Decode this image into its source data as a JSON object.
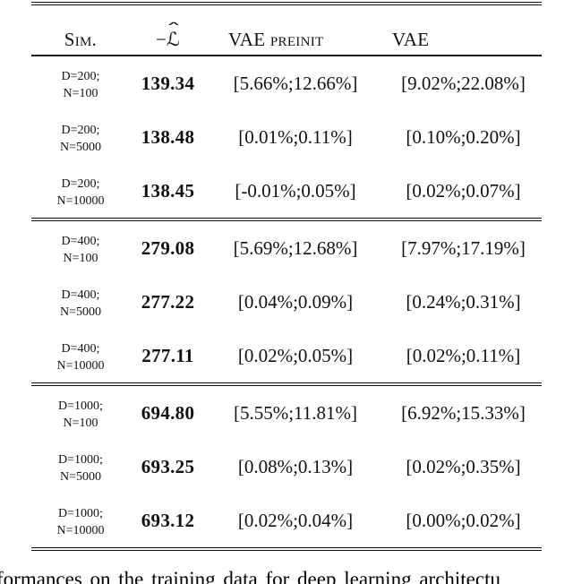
{
  "table": {
    "header": {
      "sim": "Sim.",
      "nll": {
        "minus": "−",
        "letter": "ℒ",
        "hat": "ˆ"
      },
      "vae_preinit": "VAE preinit",
      "vae": "VAE"
    },
    "sections": [
      {
        "rows": [
          {
            "sim_line1": "D=200;",
            "sim_line2": "N=100",
            "nll": "139.34",
            "vae_preinit": "[5.66%;12.66%]",
            "vae": "[9.02%;22.08%]"
          },
          {
            "sim_line1": "D=200;",
            "sim_line2": "N=5000",
            "nll": "138.48",
            "vae_preinit": "[0.01%;0.11%]",
            "vae": "[0.10%;0.20%]"
          },
          {
            "sim_line1": "D=200;",
            "sim_line2": "N=10000",
            "nll": "138.45",
            "vae_preinit": "[-0.01%;0.05%]",
            "vae": "[0.02%;0.07%]"
          }
        ]
      },
      {
        "rows": [
          {
            "sim_line1": "D=400;",
            "sim_line2": "N=100",
            "nll": "279.08",
            "vae_preinit": "[5.69%;12.68%]",
            "vae": "[7.97%;17.19%]"
          },
          {
            "sim_line1": "D=400;",
            "sim_line2": "N=5000",
            "nll": "277.22",
            "vae_preinit": "[0.04%;0.09%]",
            "vae": "[0.24%;0.31%]"
          },
          {
            "sim_line1": "D=400;",
            "sim_line2": "N=10000",
            "nll": "277.11",
            "vae_preinit": "[0.02%;0.05%]",
            "vae": "[0.02%;0.11%]"
          }
        ]
      },
      {
        "rows": [
          {
            "sim_line1": "D=1000;",
            "sim_line2": "N=100",
            "nll": "694.80",
            "vae_preinit": "[5.55%;11.81%]",
            "vae": "[6.92%;15.33%]"
          },
          {
            "sim_line1": "D=1000;",
            "sim_line2": "N=5000",
            "nll": "693.25",
            "vae_preinit": "[0.08%;0.13%]",
            "vae": "[0.02%;0.35%]"
          },
          {
            "sim_line1": "D=1000;",
            "sim_line2": "N=10000",
            "nll": "693.12",
            "vae_preinit": "[0.02%;0.04%]",
            "vae": "[0.00%;0.02%]"
          }
        ]
      }
    ]
  },
  "caption_fragment": "formances on the training data for deep learning architectu"
}
